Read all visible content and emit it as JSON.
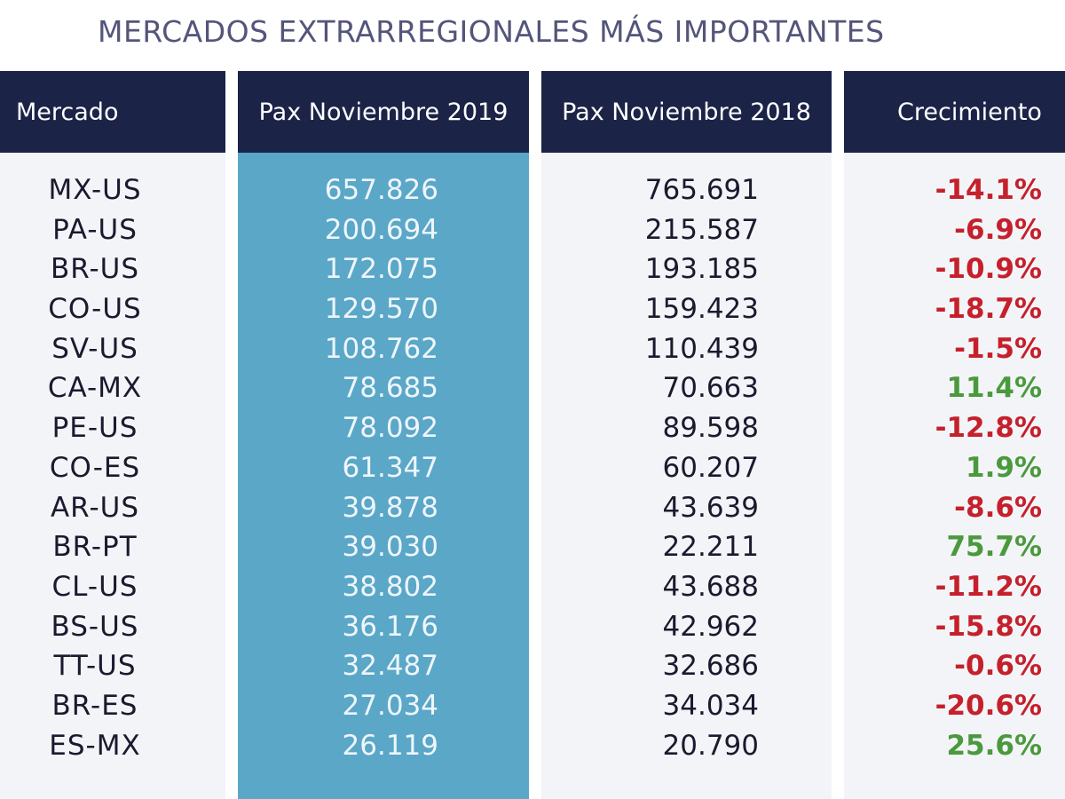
{
  "title": "MERCADOS EXTRARREGIONALES MÁS IMPORTANTES",
  "colors": {
    "header_bg": "#1b2347",
    "highlight_col": "#5ba7c8",
    "negative": "#c5202b",
    "positive": "#4a9a3c",
    "title": "#54557a"
  },
  "chart_data": {
    "type": "table",
    "title": "MERCADOS EXTRARREGIONALES MÁS IMPORTANTES",
    "columns": [
      "Mercado",
      "Pax Noviembre 2019",
      "Pax Noviembre 2018",
      "Crecimiento"
    ],
    "rows": [
      {
        "mercado": "MX-US",
        "pax_2019": "657.826",
        "pax_2018": "765.691",
        "crecimiento": "-14.1%"
      },
      {
        "mercado": "PA-US",
        "pax_2019": "200.694",
        "pax_2018": "215.587",
        "crecimiento": "-6.9%"
      },
      {
        "mercado": "BR-US",
        "pax_2019": "172.075",
        "pax_2018": "193.185",
        "crecimiento": "-10.9%"
      },
      {
        "mercado": "CO-US",
        "pax_2019": "129.570",
        "pax_2018": "159.423",
        "crecimiento": "-18.7%"
      },
      {
        "mercado": "SV-US",
        "pax_2019": "108.762",
        "pax_2018": "110.439",
        "crecimiento": "-1.5%"
      },
      {
        "mercado": "CA-MX",
        "pax_2019": "78.685",
        "pax_2018": "70.663",
        "crecimiento": "11.4%"
      },
      {
        "mercado": "PE-US",
        "pax_2019": "78.092",
        "pax_2018": "89.598",
        "crecimiento": "-12.8%"
      },
      {
        "mercado": "CO-ES",
        "pax_2019": "61.347",
        "pax_2018": "60.207",
        "crecimiento": "1.9%"
      },
      {
        "mercado": "AR-US",
        "pax_2019": "39.878",
        "pax_2018": "43.639",
        "crecimiento": "-8.6%"
      },
      {
        "mercado": "BR-PT",
        "pax_2019": "39.030",
        "pax_2018": "22.211",
        "crecimiento": "75.7%"
      },
      {
        "mercado": "CL-US",
        "pax_2019": "38.802",
        "pax_2018": "43.688",
        "crecimiento": "-11.2%"
      },
      {
        "mercado": "BS-US",
        "pax_2019": "36.176",
        "pax_2018": "42.962",
        "crecimiento": "-15.8%"
      },
      {
        "mercado": "TT-US",
        "pax_2019": "32.487",
        "pax_2018": "32.686",
        "crecimiento": "-0.6%"
      },
      {
        "mercado": "BR-ES",
        "pax_2019": "27.034",
        "pax_2018": "34.034",
        "crecimiento": "-20.6%"
      },
      {
        "mercado": "ES-MX",
        "pax_2019": "26.119",
        "pax_2018": "20.790",
        "crecimiento": "25.6%"
      }
    ]
  }
}
